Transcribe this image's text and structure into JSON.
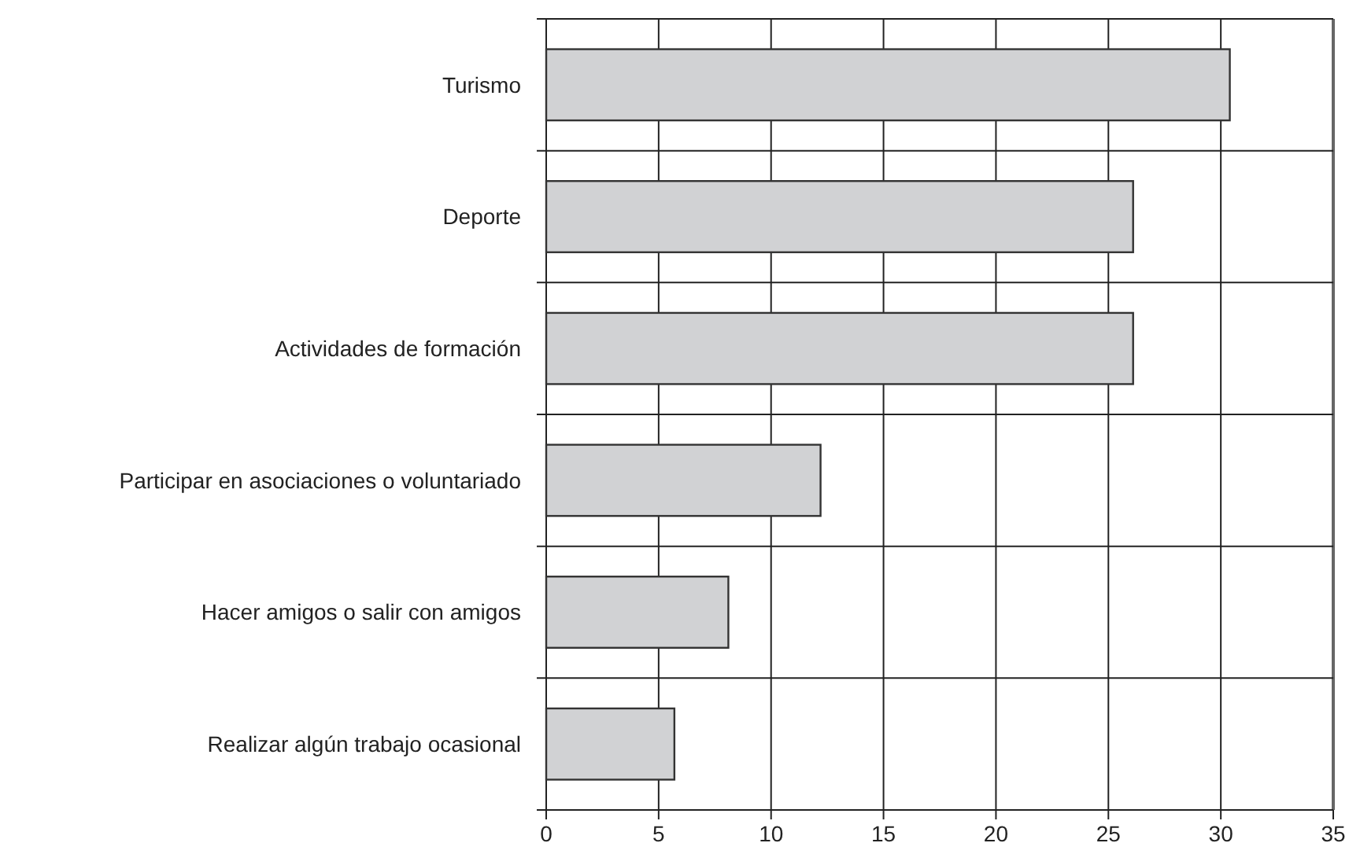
{
  "chart_data": {
    "type": "bar",
    "orientation": "horizontal",
    "categories": [
      "Turismo",
      "Deporte",
      "Actividades de formación",
      "Participar en asociaciones o voluntariado",
      "Hacer amigos o salir con amigos",
      "Realizar algún trabajo ocasional"
    ],
    "values": [
      30.4,
      26.1,
      26.1,
      12.2,
      8.1,
      5.7
    ],
    "color": "#d1d2d4",
    "xlim": [
      0,
      35
    ],
    "xticks": [
      0,
      5,
      10,
      15,
      20,
      25,
      30,
      35
    ],
    "grid": true
  }
}
